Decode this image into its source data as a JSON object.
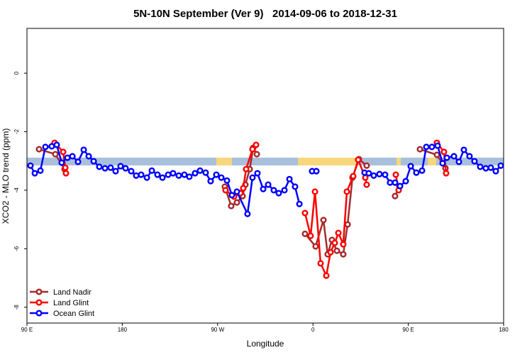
{
  "chart_data": {
    "type": "line",
    "title": "5N-10N September (Ver 9)   2014-09-06 to 2018-12-31",
    "xlabel": "Longitude",
    "ylabel": "XCO2 - MLO trend (ppm)",
    "xlim": [
      90,
      540
    ],
    "xticks": [
      {
        "value": 90,
        "label": "90 E"
      },
      180,
      {
        "value": 270,
        "label": "90 W"
      },
      {
        "value": 360,
        "label": "0"
      },
      {
        "value": 450,
        "label": "90 E"
      },
      {
        "value": 540,
        "label": "180"
      }
    ],
    "ylim": [
      -8.54,
      1.53
    ],
    "yticks": [
      0,
      -2,
      -4,
      -6,
      -8
    ],
    "legend": "bottom-left",
    "series": [
      {
        "name": "Land Nadir",
        "color": "#a52a2a",
        "x": [
          101.4,
          116.8,
          125.5,
          null,
          276.8,
          282.8,
          288.2,
          293.6,
          296.2,
          300.3,
          303.6,
          307,
          null,
          352.5,
          362.5,
          369.9,
          373.9,
          377.9,
          382.6,
          388.6,
          392.7,
          397.3,
          403.4,
          410.7,
          null,
          437.5,
          441.5,
          null,
          461,
          477,
          485.1
        ],
        "values": [
          -2.6,
          -2.77,
          -3.28,
          null,
          -3.88,
          -4.54,
          -4.42,
          -4.2,
          -3.81,
          -3.28,
          -2.55,
          -2.77,
          null,
          -5.49,
          -5.92,
          -5.02,
          -6.19,
          -5.7,
          -6.07,
          -6.19,
          -5.17,
          -3.57,
          -2.94,
          -3.16,
          null,
          -4.2,
          -3.86,
          null,
          -2.6,
          -2.79,
          -3.25
        ]
      },
      {
        "name": "Land Glint",
        "color": "#ff0000",
        "x": [
          116.1,
          124.2,
          126.2,
          126.8,
          null,
          277.5,
          285.5,
          291.5,
          294.2,
          296.9,
          302.9,
          306.3,
          null,
          352.5,
          357.8,
          361.9,
          367.2,
          372.6,
          376.6,
          380.6,
          384,
          388.6,
          392,
          398,
          402.7,
          409.4,
          410.7,
          null,
          438.2,
          440.9,
          null,
          477,
          483.7,
          485.7
        ],
        "values": [
          -2.38,
          -2.69,
          -3.23,
          -3.42,
          null,
          -4.0,
          -4.22,
          -4.1,
          -3.93,
          -3.28,
          -2.6,
          -2.45,
          null,
          -4.78,
          -5.56,
          -4.05,
          -6.5,
          -6.92,
          -6.12,
          -5.8,
          -5.46,
          -5.85,
          -4.05,
          -3.52,
          -2.96,
          -3.57,
          -3.81,
          null,
          -3.47,
          -4.0,
          null,
          -2.38,
          -2.69,
          -3.42
        ]
      },
      {
        "name": "Ocean Glint",
        "color": "#0000ff",
        "x": [
          93.3,
          97.4,
          102.7,
          107.4,
          113.4,
          118.1,
          122.8,
          128.2,
          132.9,
          138.2,
          143.6,
          148.3,
          153,
          158.3,
          163.7,
          169,
          173.7,
          178.4,
          183.1,
          188.4,
          193.1,
          197.8,
          203.2,
          207.9,
          213.2,
          217.9,
          223.3,
          227.9,
          233.3,
          238.6,
          243.3,
          248.7,
          253.4,
          258.7,
          263.4,
          268.8,
          273.5,
          278.8,
          283.5,
          288.2,
          298.2,
          302.9,
          307.6,
          313,
          317.7,
          323,
          327.7,
          333.1,
          337.8,
          343.1,
          347.2,
          null,
          359.2,
          363.2,
          null,
          408.7,
          412.7,
          417.4,
          422.8,
          428.1,
          432.8,
          437.5,
          442.2,
          447.6,
          452.3,
          457.6,
          463,
          467,
          472.3,
          477.7,
          482.4,
          486.4,
          493.1,
          497.8,
          502.5,
          507.8,
          512.5,
          517.9,
          523.2,
          527.9,
          532.6,
          537.3
        ],
        "values": [
          -3.16,
          -3.42,
          -3.33,
          -2.52,
          -2.5,
          -2.45,
          -3.06,
          -2.89,
          -2.84,
          -3.03,
          -2.62,
          -2.84,
          -3.01,
          -3.2,
          -3.25,
          -3.23,
          -3.35,
          -3.18,
          -3.25,
          -3.35,
          -3.5,
          -3.47,
          -3.57,
          -3.33,
          -3.47,
          -3.57,
          -3.47,
          -3.42,
          -3.5,
          -3.47,
          -3.54,
          -3.42,
          -3.33,
          -3.4,
          -3.69,
          -3.47,
          -3.57,
          -3.67,
          -4.17,
          -4.05,
          -4.81,
          -3.57,
          -3.42,
          -3.96,
          -3.81,
          -4.0,
          -4.1,
          -4.0,
          -3.62,
          -3.88,
          -4.47,
          null,
          -3.35,
          -3.35,
          null,
          -3.4,
          -3.42,
          -3.5,
          -3.45,
          -3.47,
          -3.74,
          -3.74,
          -3.86,
          -3.69,
          -3.18,
          -3.4,
          -3.33,
          -2.52,
          -2.52,
          -2.48,
          -3.08,
          -2.89,
          -2.84,
          -3.03,
          -2.62,
          -2.84,
          -3.01,
          -3.2,
          -3.25,
          -3.23,
          -3.35,
          -3.16
        ]
      }
    ]
  }
}
